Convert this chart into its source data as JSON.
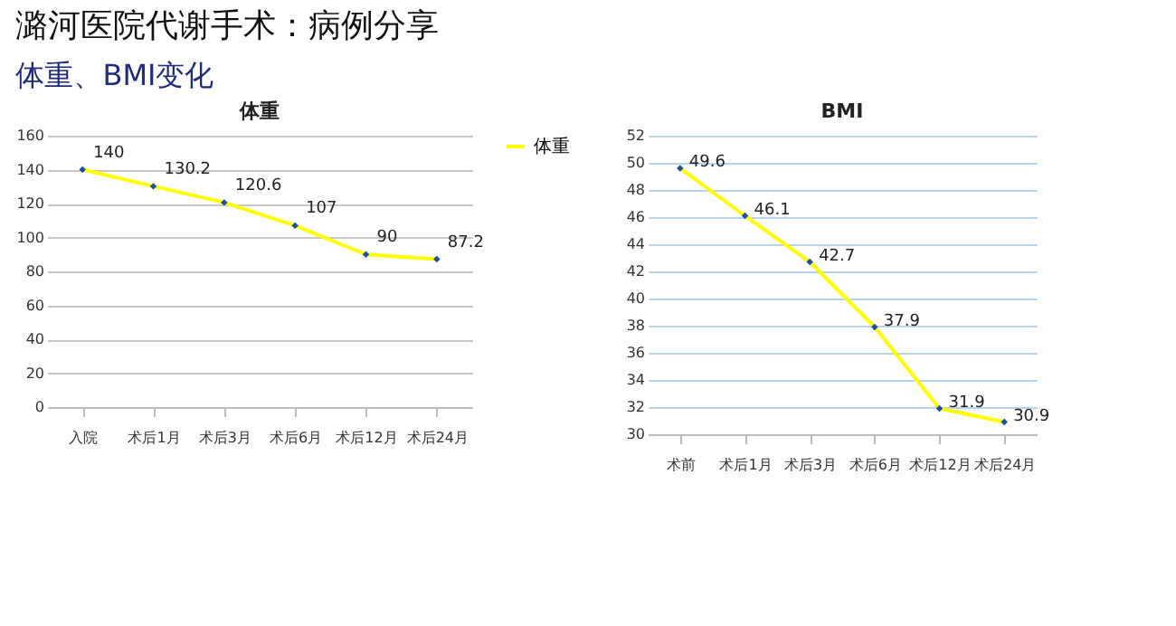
{
  "chart_data": [
    {
      "type": "line",
      "title": "体重",
      "annotations": [
        "潞河医院代谢手术：病例分享",
        "体重、BMI变化"
      ],
      "categories": [
        "入院",
        "术后1月",
        "术后3月",
        "术后6月",
        "术后12月",
        "术后24月"
      ],
      "series": [
        {
          "name": "体重",
          "color": "#ffff00",
          "values": [
            140,
            130.2,
            120.6,
            107,
            90,
            87.2
          ]
        }
      ],
      "ylim": [
        0,
        160
      ],
      "yticks": [
        0,
        20,
        40,
        60,
        80,
        100,
        120,
        140,
        160
      ],
      "grid": "y",
      "legend": "right",
      "marker": "diamond",
      "data_labels": true
    },
    {
      "type": "line",
      "title": "BMI",
      "categories": [
        "术前",
        "术后1月",
        "术后3月",
        "术后6月",
        "术后12月",
        "术后24月"
      ],
      "series": [
        {
          "color": "#ffff00",
          "values": [
            49.6,
            46.1,
            42.7,
            37.9,
            31.9,
            30.9
          ]
        }
      ],
      "ylim": [
        30,
        52
      ],
      "yticks": [
        30,
        32,
        34,
        36,
        38,
        40,
        42,
        44,
        46,
        48,
        50,
        52
      ],
      "grid": "y",
      "legend": false,
      "marker": "diamond",
      "data_labels": true
    }
  ]
}
